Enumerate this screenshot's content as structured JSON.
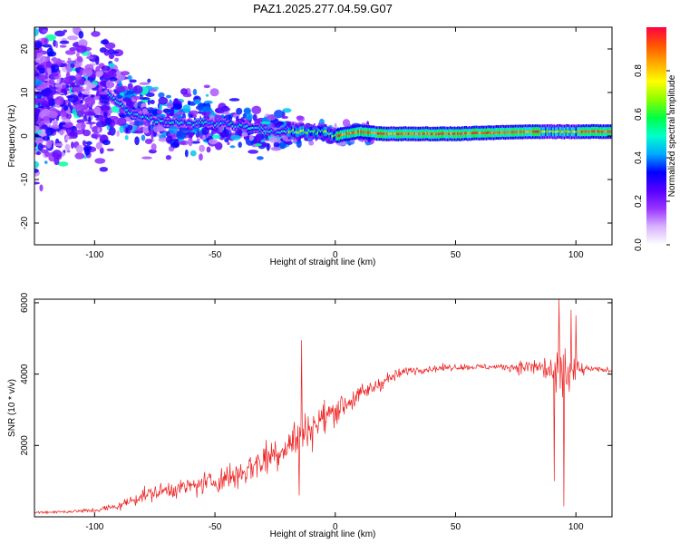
{
  "title": "PAZ1.2025.277.04.59.G07",
  "chart_data": [
    {
      "type": "heatmap",
      "xlabel": "Height of straight line (km)",
      "ylabel": "Frequency (Hz)",
      "xlim": [
        -125,
        115
      ],
      "ylim": [
        -25,
        25
      ],
      "x_ticks": [
        -100,
        -50,
        0,
        50,
        100
      ],
      "y_ticks": [
        -20,
        -10,
        0,
        10,
        20
      ],
      "colorbar": {
        "label": "Normalized spectral amplitude",
        "range": [
          0,
          1
        ],
        "ticks": [
          "0.0",
          "0.2",
          "0.4",
          "0.6",
          "0.8"
        ],
        "colors": [
          "#ffffff",
          "#d9b3ff",
          "#9933ff",
          "#5500ff",
          "#0000ff",
          "#00aaff",
          "#00ffcc",
          "#00ff44",
          "#88ff00",
          "#ffff00",
          "#ffaa00",
          "#ff5500",
          "#ff0044"
        ]
      },
      "ridge": [
        {
          "x": -125,
          "f": 8
        },
        {
          "x": -95,
          "f": 10
        },
        {
          "x": -85,
          "f": 5
        },
        {
          "x": -70,
          "f": 3
        },
        {
          "x": -50,
          "f": 3
        },
        {
          "x": -35,
          "f": 2
        },
        {
          "x": -25,
          "f": 1
        },
        {
          "x": -15,
          "f": 1
        },
        {
          "x": -5,
          "f": 1
        },
        {
          "x": 0,
          "f": 0
        },
        {
          "x": 10,
          "f": 1
        },
        {
          "x": 20,
          "f": 0.5
        },
        {
          "x": 50,
          "f": 0.5
        },
        {
          "x": 80,
          "f": 1
        },
        {
          "x": 95,
          "f": 1
        },
        {
          "x": 100,
          "f": 1
        },
        {
          "x": 115,
          "f": 1
        }
      ]
    },
    {
      "type": "line",
      "xlabel": "Height of straight line (km)",
      "ylabel": "SNR (10 * v/v)",
      "xlim": [
        -125,
        115
      ],
      "ylim": [
        0,
        6100
      ],
      "x_ticks": [
        -100,
        -50,
        0,
        50,
        100
      ],
      "y_ticks": [
        2000,
        4000,
        6000
      ],
      "color": "#ee2222",
      "envelope": [
        {
          "x": -125,
          "mean": 120,
          "spread": 60
        },
        {
          "x": -110,
          "mean": 150,
          "spread": 80
        },
        {
          "x": -100,
          "mean": 180,
          "spread": 120
        },
        {
          "x": -90,
          "mean": 300,
          "spread": 200
        },
        {
          "x": -80,
          "mean": 600,
          "spread": 350
        },
        {
          "x": -70,
          "mean": 750,
          "spread": 400
        },
        {
          "x": -60,
          "mean": 850,
          "spread": 450
        },
        {
          "x": -50,
          "mean": 1000,
          "spread": 600
        },
        {
          "x": -40,
          "mean": 1200,
          "spread": 750
        },
        {
          "x": -30,
          "mean": 1600,
          "spread": 900
        },
        {
          "x": -20,
          "mean": 2000,
          "spread": 1000
        },
        {
          "x": -10,
          "mean": 2500,
          "spread": 900
        },
        {
          "x": 0,
          "mean": 3000,
          "spread": 700
        },
        {
          "x": 10,
          "mean": 3400,
          "spread": 500
        },
        {
          "x": 20,
          "mean": 3800,
          "spread": 350
        },
        {
          "x": 30,
          "mean": 4100,
          "spread": 200
        },
        {
          "x": 50,
          "mean": 4200,
          "spread": 150
        },
        {
          "x": 70,
          "mean": 4200,
          "spread": 150
        },
        {
          "x": 85,
          "mean": 4200,
          "spread": 500
        },
        {
          "x": 92,
          "mean": 4000,
          "spread": 1300
        },
        {
          "x": 96,
          "mean": 4000,
          "spread": 1600
        },
        {
          "x": 101,
          "mean": 4100,
          "spread": 600
        },
        {
          "x": 105,
          "mean": 4150,
          "spread": 120
        },
        {
          "x": 115,
          "mean": 4100,
          "spread": 120
        }
      ],
      "spikes": [
        {
          "x": -14,
          "y": 4950
        },
        {
          "x": -15,
          "y": 600
        },
        {
          "x": 93,
          "y": 6100
        },
        {
          "x": 95,
          "y": 300
        },
        {
          "x": 91,
          "y": 1000
        },
        {
          "x": 98,
          "y": 5800
        },
        {
          "x": 100,
          "y": 5650
        }
      ]
    }
  ]
}
